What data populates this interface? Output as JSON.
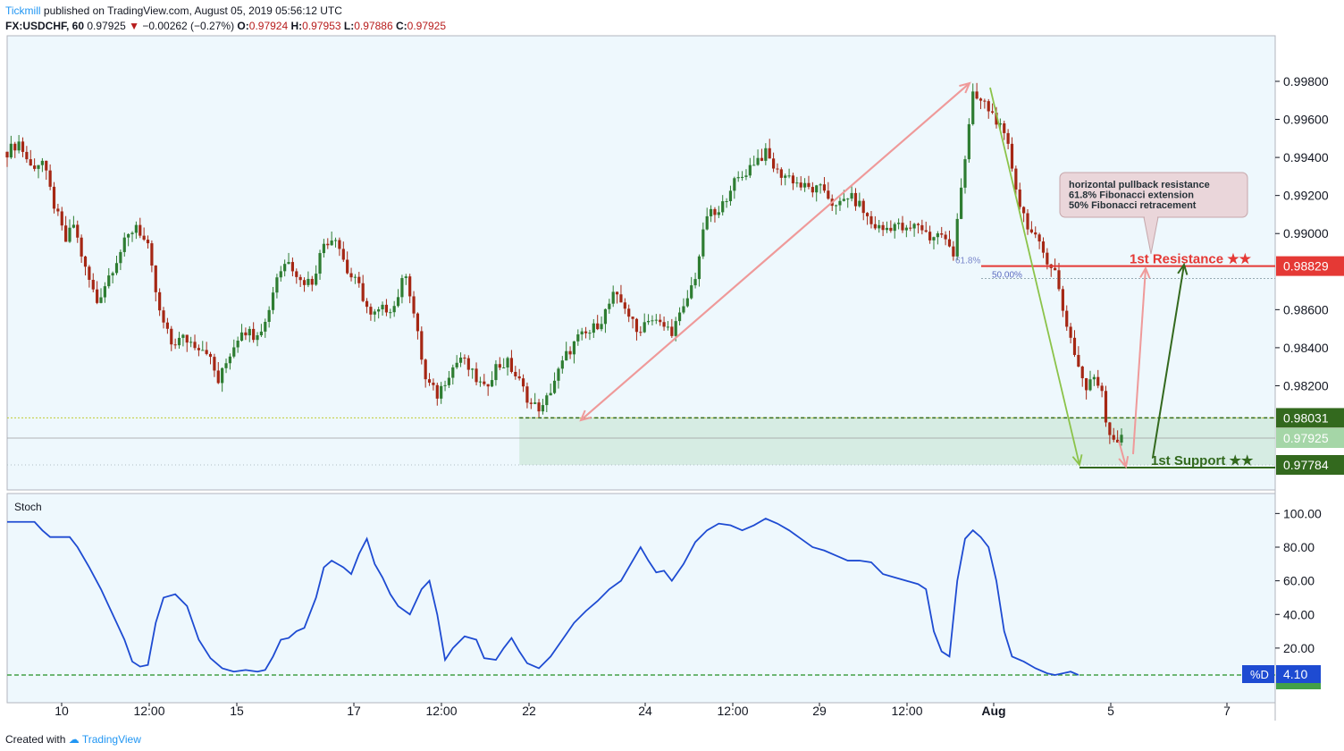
{
  "header": {
    "author": "Tickmill",
    "published_text": "published on TradingView.com, August 05, 2019 05:56:12 UTC",
    "symbol": "FX:USDCHF, 60",
    "last": "0.97925",
    "change_arrow": "▼",
    "change": "−0.00262 (−0.27%)",
    "o_label": "O:",
    "o_value": "0.97924",
    "h_label": "H:",
    "h_value": "0.97953",
    "l_label": "L:",
    "l_value": "0.97886",
    "c_label": "C:",
    "c_value": "0.97925"
  },
  "footer": {
    "created_with": "Created with",
    "brand": "TradingView"
  },
  "colors": {
    "background": "#eef8fd",
    "up": "#2e7d32",
    "down": "#a52714",
    "resistance": "#e53935",
    "support": "#33691e",
    "zone": "#cfe8dc",
    "pink_arrow": "#ef9a9a",
    "green_arrow": "#8bc34a",
    "stoch": "#1e4bd2"
  },
  "chart_data": [
    {
      "type": "candlestick",
      "title": "FX:USDCHF, 60",
      "ylim": [
        0.977,
        0.999
      ],
      "y_ticks": [
        "0.99800",
        "0.99600",
        "0.99400",
        "0.99200",
        "0.99000",
        "0.98600",
        "0.98400",
        "0.98200"
      ],
      "x_ticks": [
        "10",
        "12:00",
        "15",
        "17",
        "12:00",
        "22",
        "24",
        "12:00",
        "29",
        "12:00",
        "Aug",
        "5",
        "7"
      ],
      "price_path": [
        [
          0,
          0.9943
        ],
        [
          3,
          0.9948
        ],
        [
          6,
          0.9935
        ],
        [
          9,
          0.9938
        ],
        [
          12,
          0.9915
        ],
        [
          15,
          0.9896
        ],
        [
          17,
          0.9905
        ],
        [
          20,
          0.9881
        ],
        [
          23,
          0.9864
        ],
        [
          26,
          0.9878
        ],
        [
          30,
          0.9895
        ],
        [
          33,
          0.9905
        ],
        [
          36,
          0.9892
        ],
        [
          39,
          0.9858
        ],
        [
          42,
          0.9842
        ],
        [
          45,
          0.9845
        ],
        [
          48,
          0.9842
        ],
        [
          51,
          0.9839
        ],
        [
          54,
          0.9822
        ],
        [
          57,
          0.9837
        ],
        [
          60,
          0.985
        ],
        [
          63,
          0.9847
        ],
        [
          66,
          0.9853
        ],
        [
          69,
          0.9878
        ],
        [
          72,
          0.9887
        ],
        [
          75,
          0.9875
        ],
        [
          78,
          0.9875
        ],
        [
          81,
          0.9895
        ],
        [
          84,
          0.9899
        ],
        [
          87,
          0.988
        ],
        [
          90,
          0.9872
        ],
        [
          93,
          0.9856
        ],
        [
          96,
          0.986
        ],
        [
          99,
          0.9862
        ],
        [
          102,
          0.988
        ],
        [
          104,
          0.9858
        ],
        [
          107,
          0.9823
        ],
        [
          110,
          0.9815
        ],
        [
          113,
          0.9827
        ],
        [
          116,
          0.9835
        ],
        [
          119,
          0.9826
        ],
        [
          122,
          0.9818
        ],
        [
          125,
          0.983
        ],
        [
          128,
          0.9832
        ],
        [
          131,
          0.9822
        ],
        [
          134,
          0.981
        ],
        [
          137,
          0.9808
        ],
        [
          140,
          0.9823
        ],
        [
          143,
          0.9836
        ],
        [
          146,
          0.9845
        ],
        [
          149,
          0.9848
        ],
        [
          152,
          0.9855
        ],
        [
          155,
          0.9867
        ],
        [
          158,
          0.9862
        ],
        [
          161,
          0.9848
        ],
        [
          164,
          0.9856
        ],
        [
          167,
          0.9852
        ],
        [
          170,
          0.9849
        ],
        [
          173,
          0.986
        ],
        [
          176,
          0.9878
        ],
        [
          179,
          0.991
        ],
        [
          182,
          0.991
        ],
        [
          185,
          0.9925
        ],
        [
          188,
          0.993
        ],
        [
          191,
          0.9938
        ],
        [
          194,
          0.9942
        ],
        [
          197,
          0.9932
        ],
        [
          200,
          0.993
        ],
        [
          203,
          0.9925
        ],
        [
          206,
          0.9923
        ],
        [
          209,
          0.9923
        ],
        [
          212,
          0.9913
        ],
        [
          215,
          0.992
        ],
        [
          218,
          0.9915
        ],
        [
          221,
          0.9905
        ],
        [
          224,
          0.9902
        ],
        [
          227,
          0.9905
        ],
        [
          230,
          0.9901
        ],
        [
          233,
          0.9905
        ],
        [
          236,
          0.9898
        ],
        [
          239,
          0.99
        ],
        [
          242,
          0.9888
        ],
        [
          243,
          0.991
        ],
        [
          245,
          0.994
        ],
        [
          247,
          0.9972
        ],
        [
          250,
          0.9968
        ],
        [
          253,
          0.996
        ],
        [
          256,
          0.9945
        ],
        [
          259,
          0.9915
        ],
        [
          262,
          0.99
        ],
        [
          265,
          0.989
        ],
        [
          268,
          0.988
        ],
        [
          270,
          0.986
        ],
        [
          272,
          0.9845
        ],
        [
          274,
          0.983
        ],
        [
          276,
          0.9818
        ],
        [
          278,
          0.9825
        ],
        [
          280,
          0.9818
        ],
        [
          281,
          0.9803
        ],
        [
          282,
          0.9795
        ],
        [
          284,
          0.9791
        ],
        [
          285,
          0.9792
        ]
      ],
      "levels": [
        {
          "name": "1st Resistance ★★",
          "value": 0.98829,
          "label": "0.98829"
        },
        {
          "name": "1st Support ★★",
          "value": 0.97784,
          "label": "0.97784"
        },
        {
          "name": "zone-top",
          "value": 0.98031,
          "label": "0.98031"
        },
        {
          "name": "last",
          "value": 0.97925,
          "label": "0.97925"
        }
      ],
      "fib_labels": [
        "61.8%",
        "50.00%"
      ],
      "annotation": [
        "horizontal pullback resistance",
        "61.8% Fibonacci extension",
        "50% Fibonacci retracement"
      ]
    },
    {
      "type": "line",
      "title": "Stoch",
      "ylim": [
        0,
        100
      ],
      "y_ticks": [
        "100.00",
        "80.00",
        "60.00",
        "40.00",
        "20.00"
      ],
      "series": [
        {
          "name": "%D",
          "last": "4.10",
          "points": [
            [
              0,
              95
            ],
            [
              7,
              95
            ],
            [
              9,
              90
            ],
            [
              11,
              86
            ],
            [
              16,
              86
            ],
            [
              18,
              80
            ],
            [
              21,
              68
            ],
            [
              24,
              55
            ],
            [
              26,
              45
            ],
            [
              28,
              35
            ],
            [
              30,
              25
            ],
            [
              32,
              12
            ],
            [
              34,
              9
            ],
            [
              36,
              10
            ],
            [
              38,
              35
            ],
            [
              40,
              50
            ],
            [
              43,
              52
            ],
            [
              46,
              45
            ],
            [
              49,
              25
            ],
            [
              52,
              14
            ],
            [
              55,
              8
            ],
            [
              58,
              6
            ],
            [
              61,
              7
            ],
            [
              64,
              6
            ],
            [
              66,
              7
            ],
            [
              68,
              15
            ],
            [
              70,
              25
            ],
            [
              72,
              26
            ],
            [
              74,
              30
            ],
            [
              76,
              32
            ],
            [
              79,
              50
            ],
            [
              81,
              68
            ],
            [
              83,
              72
            ],
            [
              86,
              68
            ],
            [
              88,
              64
            ],
            [
              90,
              76
            ],
            [
              92,
              85
            ],
            [
              94,
              70
            ],
            [
              96,
              62
            ],
            [
              98,
              52
            ],
            [
              100,
              45
            ],
            [
              103,
              40
            ],
            [
              106,
              55
            ],
            [
              108,
              60
            ],
            [
              110,
              40
            ],
            [
              112,
              13
            ],
            [
              114,
              20
            ],
            [
              117,
              27
            ],
            [
              120,
              25
            ],
            [
              122,
              14
            ],
            [
              125,
              13
            ],
            [
              127,
              20
            ],
            [
              129,
              26
            ],
            [
              131,
              18
            ],
            [
              133,
              11
            ],
            [
              136,
              8
            ],
            [
              139,
              15
            ],
            [
              142,
              25
            ],
            [
              145,
              35
            ],
            [
              148,
              42
            ],
            [
              151,
              48
            ],
            [
              154,
              55
            ],
            [
              157,
              60
            ],
            [
              160,
              72
            ],
            [
              162,
              80
            ],
            [
              164,
              72
            ],
            [
              166,
              65
            ],
            [
              168,
              66
            ],
            [
              170,
              60
            ],
            [
              173,
              70
            ],
            [
              176,
              83
            ],
            [
              179,
              90
            ],
            [
              182,
              94
            ],
            [
              185,
              93
            ],
            [
              188,
              90
            ],
            [
              191,
              93
            ],
            [
              194,
              97
            ],
            [
              197,
              94
            ],
            [
              200,
              90
            ],
            [
              203,
              85
            ],
            [
              206,
              80
            ],
            [
              209,
              78
            ],
            [
              212,
              75
            ],
            [
              215,
              72
            ],
            [
              218,
              72
            ],
            [
              221,
              71
            ],
            [
              224,
              64
            ],
            [
              227,
              62
            ],
            [
              230,
              60
            ],
            [
              233,
              58
            ],
            [
              235,
              55
            ],
            [
              237,
              30
            ],
            [
              239,
              18
            ],
            [
              241,
              15
            ],
            [
              243,
              60
            ],
            [
              245,
              85
            ],
            [
              247,
              90
            ],
            [
              249,
              86
            ],
            [
              251,
              80
            ],
            [
              253,
              60
            ],
            [
              255,
              30
            ],
            [
              257,
              15
            ],
            [
              260,
              12
            ],
            [
              263,
              8
            ],
            [
              266,
              5
            ],
            [
              268,
              4
            ],
            [
              270,
              5
            ],
            [
              272,
              6
            ],
            [
              274,
              4
            ]
          ]
        }
      ]
    }
  ]
}
